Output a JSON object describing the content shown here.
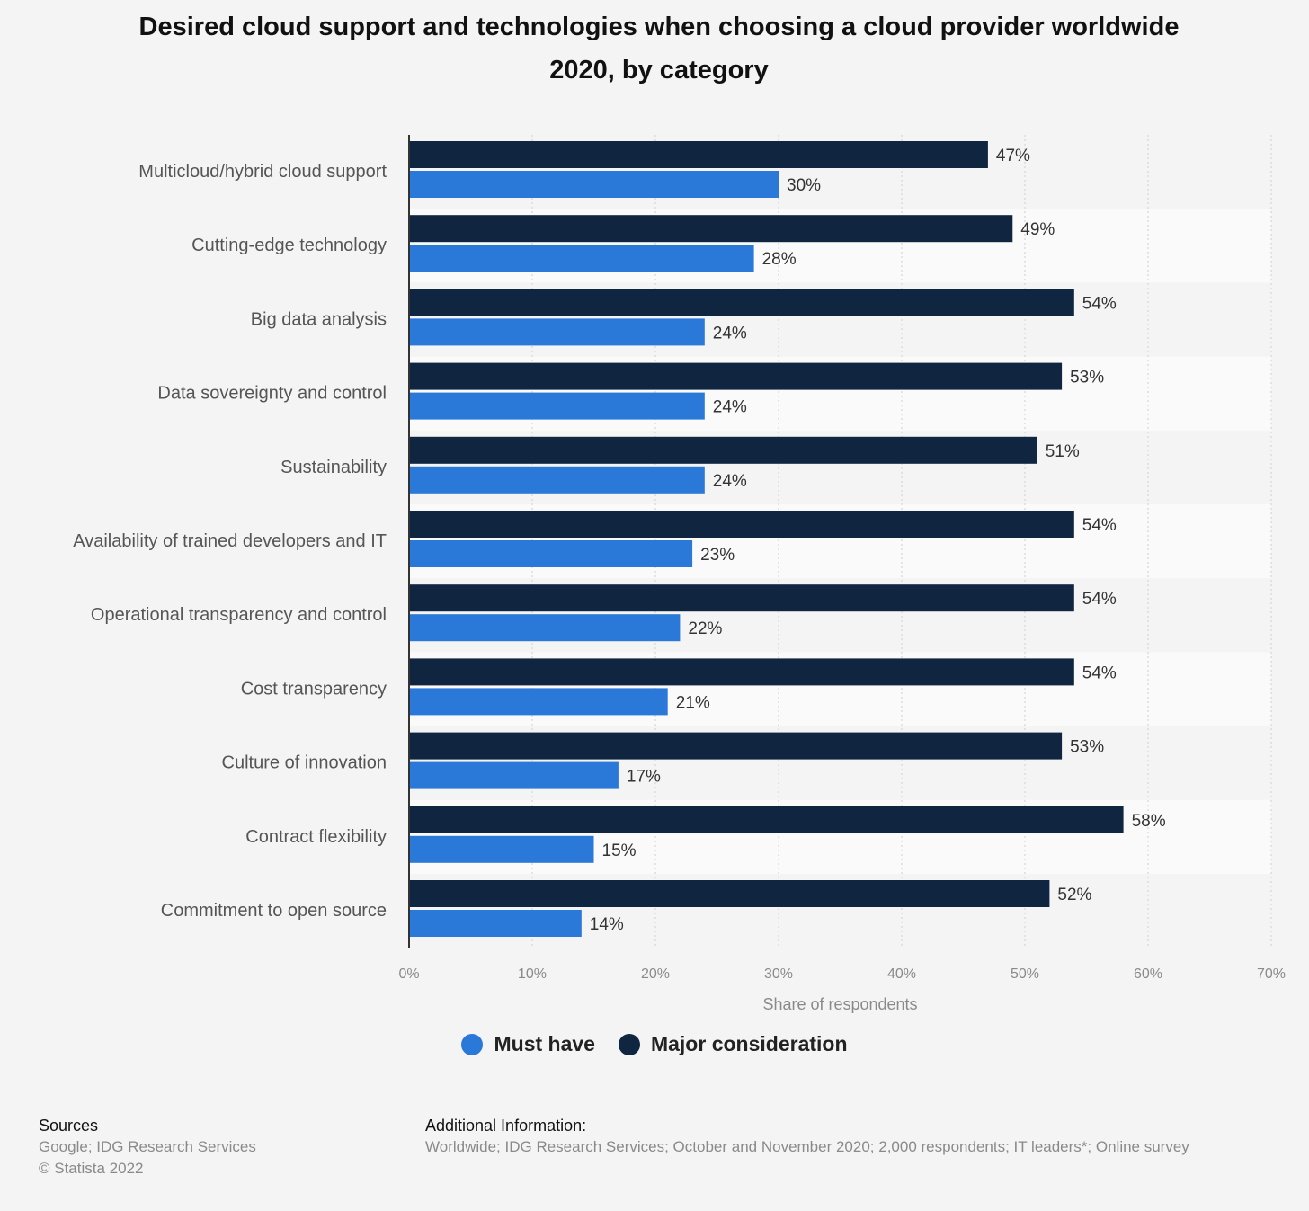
{
  "title_line1": "Desired cloud support and technologies when choosing a cloud provider worldwide",
  "title_line2": "2020, by category",
  "chart_data": {
    "type": "bar",
    "orientation": "horizontal",
    "categories": [
      "Multicloud/hybrid cloud support",
      "Cutting-edge technology",
      "Big data analysis",
      "Data sovereignty and control",
      "Sustainability",
      "Availability of trained developers and IT",
      "Operational transparency and control",
      "Cost transparency",
      "Culture of innovation",
      "Contract flexibility",
      "Commitment to open source"
    ],
    "series": [
      {
        "name": "Major consideration",
        "color": "#0f2540",
        "values": [
          47,
          49,
          54,
          53,
          51,
          54,
          54,
          54,
          53,
          58,
          52
        ]
      },
      {
        "name": "Must have",
        "color": "#2a78d8",
        "values": [
          30,
          28,
          24,
          24,
          24,
          23,
          22,
          21,
          17,
          15,
          14
        ]
      }
    ],
    "value_suffix": "%",
    "xlim": [
      0,
      70
    ],
    "xticks": [
      "0%",
      "10%",
      "20%",
      "30%",
      "40%",
      "50%",
      "60%",
      "70%"
    ],
    "xlabel": "Share of respondents",
    "grid": "vertical dotted",
    "legend_placement": "bottom-center"
  },
  "legend": [
    {
      "label": "Must have",
      "color": "#2a78d8"
    },
    {
      "label": "Major consideration",
      "color": "#0f2540"
    }
  ],
  "footer": {
    "sources_heading": "Sources",
    "sources_text": "Google; IDG Research Services",
    "copyright": "© Statista 2022",
    "additional_heading": "Additional Information:",
    "additional_text": "Worldwide; IDG Research Services; October and November 2020; 2,000 respondents; IT leaders*; Online survey"
  }
}
